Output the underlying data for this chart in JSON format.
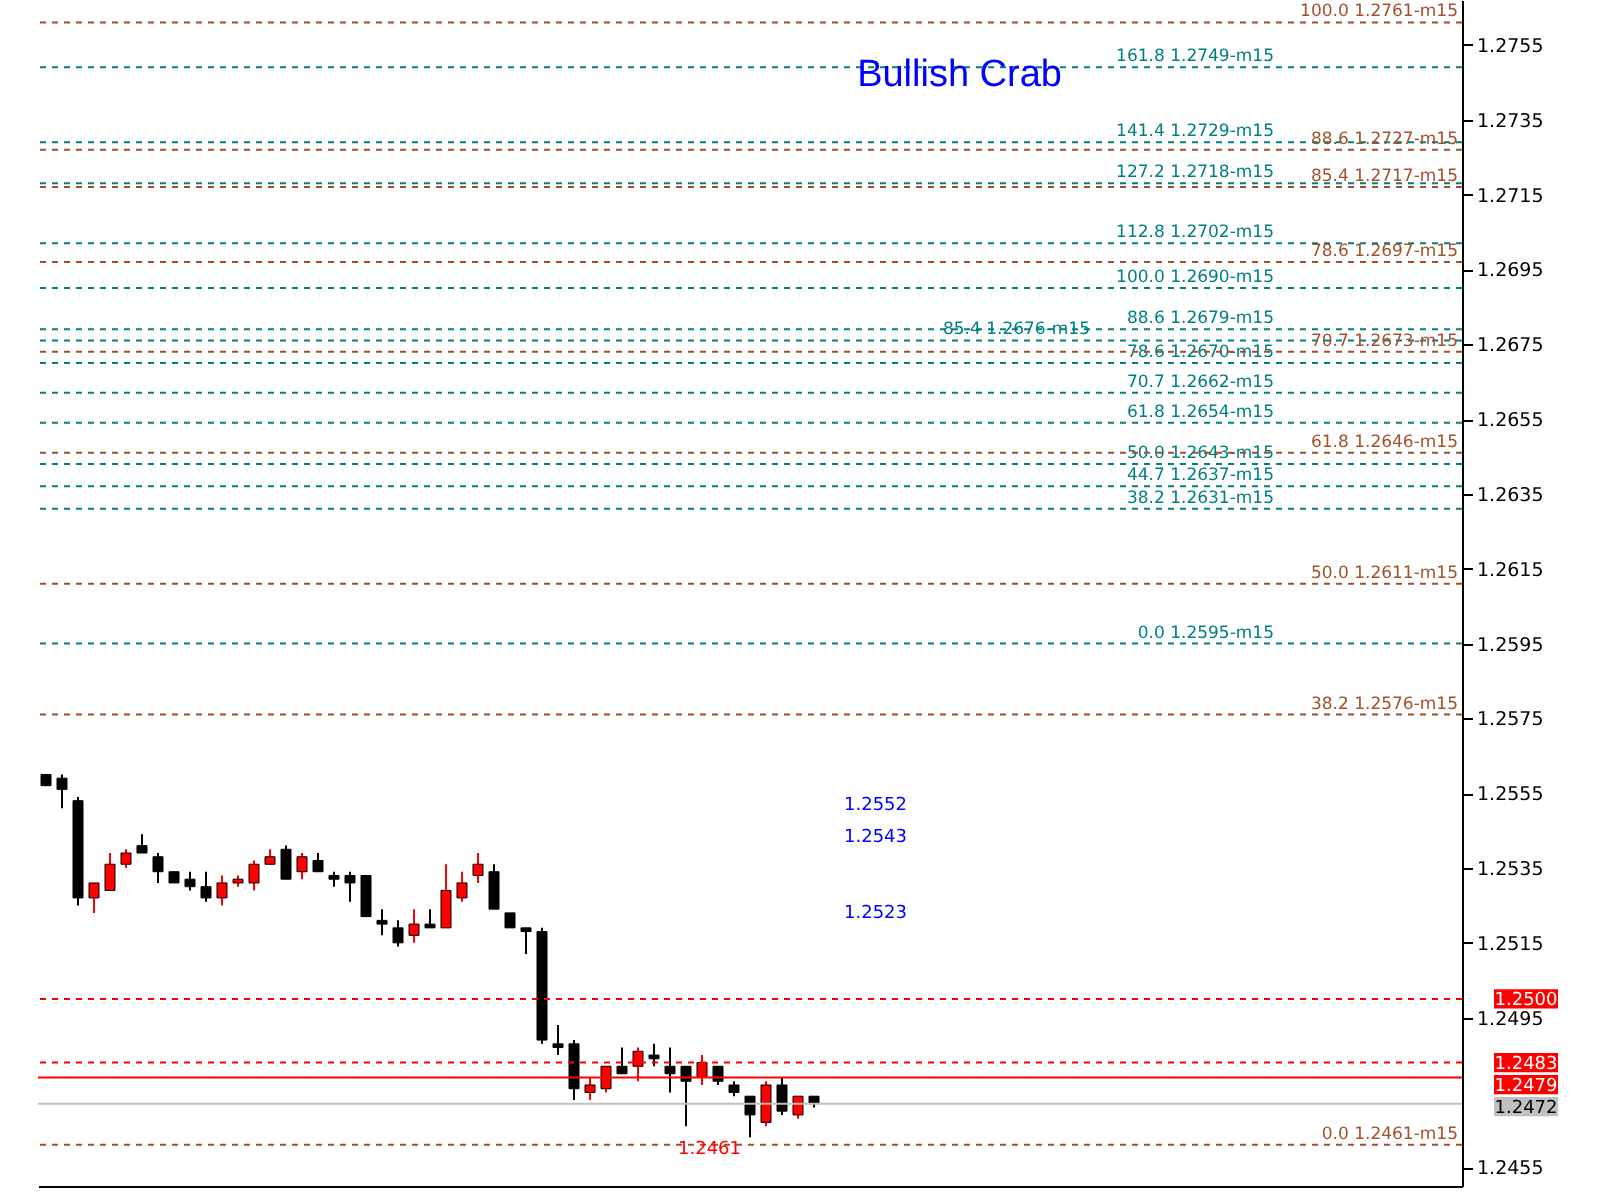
{
  "chart_data": {
    "type": "candlestick",
    "title": "Bullish Crab",
    "categories": [
      null,
      null,
      null,
      null,
      null,
      null,
      null,
      null,
      null,
      null,
      null,
      null,
      null,
      null,
      null,
      null,
      null,
      null,
      null,
      null,
      null,
      null,
      null,
      null,
      null,
      null,
      null,
      null,
      null,
      null,
      null,
      null,
      null,
      null,
      null,
      null,
      null,
      null,
      null,
      null,
      null,
      null,
      null,
      null,
      null,
      null,
      null,
      null,
      null,
      null,
      null,
      null,
      null,
      null,
      null,
      null,
      null,
      null,
      null,
      null,
      null,
      null,
      null,
      null,
      null,
      null,
      null,
      null,
      null,
      null,
      null,
      null,
      null,
      null,
      null,
      null,
      null,
      null,
      null,
      null,
      null,
      null,
      null,
      null,
      null,
      null,
      null,
      null,
      null
    ],
    "ohlc": [
      [
        1.256,
        1.256,
        1.2557,
        1.2557
      ],
      [
        1.2559,
        1.256,
        1.2551,
        1.2556
      ],
      [
        1.2553,
        1.2554,
        1.2525,
        1.2527
      ],
      [
        1.2527,
        1.2531,
        1.2523,
        1.2531
      ],
      [
        1.2529,
        1.2539,
        1.2529,
        1.2536
      ],
      [
        1.2536,
        1.254,
        1.2535,
        1.2539
      ],
      [
        1.2541,
        1.2544,
        1.2539,
        1.2539
      ],
      [
        1.2538,
        1.2539,
        1.2531,
        1.2534
      ],
      [
        1.2534,
        1.2534,
        1.2531,
        1.2531
      ],
      [
        1.2532,
        1.2534,
        1.2529,
        1.253
      ],
      [
        1.253,
        1.2534,
        1.2526,
        1.2527
      ],
      [
        1.2527,
        1.2533,
        1.2525,
        1.2531
      ],
      [
        1.2531,
        1.2533,
        1.253,
        1.2532
      ],
      [
        1.2531,
        1.2537,
        1.2529,
        1.2536
      ],
      [
        1.2536,
        1.254,
        1.2536,
        1.2538
      ],
      [
        1.254,
        1.2541,
        1.2532,
        1.2532
      ],
      [
        1.2534,
        1.2539,
        1.2532,
        1.2538
      ],
      [
        1.2537,
        1.2539,
        1.2534,
        1.2534
      ],
      [
        1.2533,
        1.2534,
        1.253,
        1.2532
      ],
      [
        1.2533,
        1.2534,
        1.2526,
        1.2531
      ],
      [
        1.2533,
        1.2533,
        1.2522,
        1.2522
      ],
      [
        1.2521,
        1.2524,
        1.2517,
        1.252
      ],
      [
        1.2519,
        1.2521,
        1.2514,
        1.2515
      ],
      [
        1.2517,
        1.2524,
        1.2515,
        1.252
      ],
      [
        1.252,
        1.2524,
        1.2519,
        1.2519
      ],
      [
        1.2519,
        1.2536,
        1.2519,
        1.2529
      ],
      [
        1.2527,
        1.2534,
        1.2526,
        1.2531
      ],
      [
        1.2533,
        1.2539,
        1.2531,
        1.2536
      ],
      [
        1.2534,
        1.2536,
        1.2524,
        1.2524
      ],
      [
        1.2523,
        1.2523,
        1.2519,
        1.2519
      ],
      [
        1.2519,
        1.2519,
        1.2512,
        1.2518
      ],
      [
        1.2518,
        1.2519,
        1.2488,
        1.2489
      ],
      [
        1.2488,
        1.2493,
        1.2485,
        1.2487
      ],
      [
        1.2488,
        1.2489,
        1.2473,
        1.2476
      ],
      [
        1.2475,
        1.2479,
        1.2473,
        1.2477
      ],
      [
        1.2476,
        1.2482,
        1.2475,
        1.2482
      ],
      [
        1.2482,
        1.2487,
        1.248,
        1.248
      ],
      [
        1.2482,
        1.2487,
        1.2478,
        1.2486
      ],
      [
        1.2485,
        1.2488,
        1.2482,
        1.2484
      ],
      [
        1.2482,
        1.2487,
        1.2475,
        1.248
      ],
      [
        1.2482,
        1.2482,
        1.2466,
        1.2478
      ],
      [
        1.2479,
        1.2485,
        1.2477,
        1.2483
      ],
      [
        1.2482,
        1.2482,
        1.2477,
        1.2478
      ],
      [
        1.2477,
        1.2478,
        1.2474,
        1.2475
      ],
      [
        1.2474,
        1.2474,
        1.2463,
        1.2469
      ],
      [
        1.2467,
        1.2478,
        1.2466,
        1.2477
      ],
      [
        1.2477,
        1.2479,
        1.2469,
        1.247
      ],
      [
        1.2469,
        1.2474,
        1.2468,
        1.2474
      ],
      [
        1.2474,
        1.2474,
        1.2471,
        1.2472
      ],
      null,
      null,
      null,
      null,
      null,
      null,
      null,
      null,
      null,
      null,
      null,
      null,
      null,
      null,
      null,
      null,
      null,
      null,
      null,
      null,
      null,
      null,
      null,
      null,
      null,
      null,
      null,
      null,
      null,
      null,
      null,
      null,
      null,
      null,
      null,
      null,
      null,
      null,
      null,
      null
    ],
    "colors": [
      "#000000",
      "#000000",
      "#000000",
      "#ff0000",
      "#ff0000",
      "#ff0000",
      "#000000",
      "#000000",
      "#000000",
      "#000000",
      "#000000",
      "#ff0000",
      "#ff0000",
      "#ff0000",
      "#ff0000",
      "#000000",
      "#ff0000",
      "#000000",
      "#000000",
      "#000000",
      "#000000",
      "#000000",
      "#000000",
      "#ff0000",
      "#000000",
      "#ff0000",
      "#ff0000",
      "#ff0000",
      "#000000",
      "#000000",
      "#000000",
      "#000000",
      "#000000",
      "#000000",
      "#ff0000",
      "#ff0000",
      "#000000",
      "#ff0000",
      "#000000",
      "#000000",
      "#000000",
      "#ff0000",
      "#000000",
      "#000000",
      "#000000",
      "#ff0000",
      "#000000",
      "#ff0000",
      "#000000",
      null,
      null,
      null,
      null,
      null,
      null,
      null,
      null,
      null,
      null,
      null,
      null,
      null,
      null,
      null,
      null,
      null,
      null,
      null,
      null,
      null,
      null,
      null,
      null,
      null,
      null,
      null,
      null,
      null,
      null,
      null,
      null,
      null,
      null,
      null,
      null,
      null,
      null,
      null,
      null
    ],
    "ylim": [
      1.245,
      1.2767
    ],
    "yticks": [
      1.2455,
      1.2495,
      1.2515,
      1.2535,
      1.2555,
      1.2575,
      1.2595,
      1.2615,
      1.2635,
      1.2655,
      1.2675,
      1.2695,
      1.2715,
      1.2735,
      1.2755
    ],
    "tick_labels": "y",
    "grid": false,
    "ref_lines": [
      {
        "axis": "y",
        "value": 1.2749,
        "label": "161.8 1.2749-m15",
        "color": "#008080",
        "line_style": "dashed"
      },
      {
        "axis": "y",
        "value": 1.2729,
        "label": "141.4 1.2729-m15",
        "color": "#008080",
        "line_style": "dashed"
      },
      {
        "axis": "y",
        "value": 1.2718,
        "label": "127.2 1.2718-m15",
        "color": "#008080",
        "line_style": "dashed"
      },
      {
        "axis": "y",
        "value": 1.2702,
        "label": "112.8 1.2702-m15",
        "color": "#008080",
        "line_style": "dashed"
      },
      {
        "axis": "y",
        "value": 1.269,
        "label": "100.0 1.2690-m15",
        "color": "#008080",
        "line_style": "dashed"
      },
      {
        "axis": "y",
        "value": 1.2679,
        "label": "88.6 1.2679-m15",
        "color": "#008080",
        "line_style": "dashed"
      },
      {
        "axis": "y",
        "value": 1.2676,
        "label": "85.4 1.2676-m15",
        "color": "#008080",
        "line_style": "dashed"
      },
      {
        "axis": "y",
        "value": 1.267,
        "label": "78.6 1.2670-m15",
        "color": "#008080",
        "line_style": "dashed"
      },
      {
        "axis": "y",
        "value": 1.2662,
        "label": "70.7 1.2662-m15",
        "color": "#008080",
        "line_style": "dashed"
      },
      {
        "axis": "y",
        "value": 1.2654,
        "label": "61.8 1.2654-m15",
        "color": "#008080",
        "line_style": "dashed"
      },
      {
        "axis": "y",
        "value": 1.2643,
        "label": "50.0 1.2643-m15",
        "color": "#008080",
        "line_style": "dashed"
      },
      {
        "axis": "y",
        "value": 1.2637,
        "label": "44.7 1.2637-m15",
        "color": "#008080",
        "line_style": "dashed"
      },
      {
        "axis": "y",
        "value": 1.2631,
        "label": "38.2 1.2631-m15",
        "color": "#008080",
        "line_style": "dashed"
      },
      {
        "axis": "y",
        "value": 1.2595,
        "label": "0.0 1.2595-m15",
        "color": "#008080",
        "line_style": "dashed"
      },
      {
        "axis": "y",
        "value": 1.2761,
        "label": "100.0 1.2761-m15",
        "color": "#a0522d",
        "line_style": "dashed"
      },
      {
        "axis": "y",
        "value": 1.2727,
        "label": "88.6 1.2727-m15",
        "color": "#a0522d",
        "line_style": "dashed"
      },
      {
        "axis": "y",
        "value": 1.2717,
        "label": "85.4 1.2717-m15",
        "color": "#a0522d",
        "line_style": "dashed"
      },
      {
        "axis": "y",
        "value": 1.2697,
        "label": "78.6 1.2697-m15",
        "color": "#a0522d",
        "line_style": "dashed"
      },
      {
        "axis": "y",
        "value": 1.2673,
        "label": "70.7 1.2673-m15",
        "color": "#a0522d",
        "line_style": "dashed"
      },
      {
        "axis": "y",
        "value": 1.2646,
        "label": "61.8 1.2646-m15",
        "color": "#a0522d",
        "line_style": "dashed"
      },
      {
        "axis": "y",
        "value": 1.2611,
        "label": "50.0 1.2611-m15",
        "color": "#a0522d",
        "line_style": "dashed"
      },
      {
        "axis": "y",
        "value": 1.2576,
        "label": "38.2 1.2576-m15",
        "color": "#a0522d",
        "line_style": "dashed"
      },
      {
        "axis": "y",
        "value": 1.2461,
        "label": "0.0 1.2461-m15",
        "color": "#a0522d",
        "line_style": "dashed"
      },
      {
        "axis": "y",
        "value": 1.25,
        "label": "1.2500",
        "color": "#ff0000",
        "line_style": "dashed"
      },
      {
        "axis": "y",
        "value": 1.2483,
        "label": "1.2483",
        "color": "#ff0000",
        "line_style": "dashed"
      },
      {
        "axis": "y",
        "value": 1.2479,
        "label": "1.2479",
        "color": "#ff0000",
        "line_style": "solid"
      },
      {
        "axis": "y",
        "value": 1.2472,
        "label": "1.2472",
        "color": "#c0c0c0",
        "line_style": "solid"
      }
    ],
    "annotations": [
      "1.2552",
      "1.2543",
      "1.2523",
      "1.2461"
    ]
  }
}
